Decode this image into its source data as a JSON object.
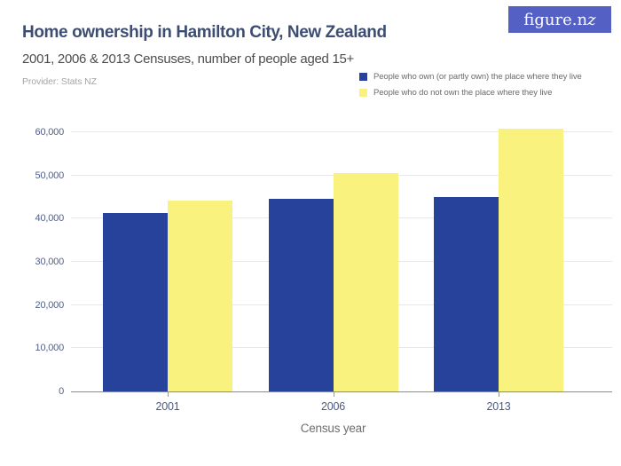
{
  "header": {
    "title": "Home ownership in Hamilton City, New Zealand",
    "subtitle": "2001, 2006 & 2013 Censuses, number of people aged 15+",
    "provider": "Provider: Stats NZ",
    "logo_text_main": "figure.n",
    "logo_text_z": "z"
  },
  "colors": {
    "brand_purple": "#5560C4",
    "bar_own_blue": "#26429A",
    "bar_not_own_yellow": "#FAF27E",
    "title_navy": "#3D4E72",
    "axis_label_blue": "#51608C",
    "gridline_gray": "#E8E8EA"
  },
  "chart_data": {
    "type": "bar",
    "categories": [
      "2001",
      "2006",
      "2013"
    ],
    "series": [
      {
        "name": "People who own (or partly own) the place where they live",
        "color": "#26429A",
        "values": [
          41400,
          44500,
          45100
        ]
      },
      {
        "name": "People who do not own the place where they live",
        "color": "#FAF27E",
        "values": [
          44100,
          50500,
          60800
        ]
      }
    ],
    "title": "Home ownership in Hamilton City, New Zealand",
    "subtitle": "2001, 2006 & 2013 Censuses, number of people aged 15+",
    "xlabel": "Census year",
    "ylabel": "",
    "ylim": [
      0,
      62000
    ],
    "yticks": [
      0,
      10000,
      20000,
      30000,
      40000,
      50000,
      60000
    ],
    "ytick_labels": [
      "0",
      "10,000",
      "20,000",
      "30,000",
      "40,000",
      "50,000",
      "60,000"
    ],
    "grid": true,
    "legend_position": "top-right"
  }
}
